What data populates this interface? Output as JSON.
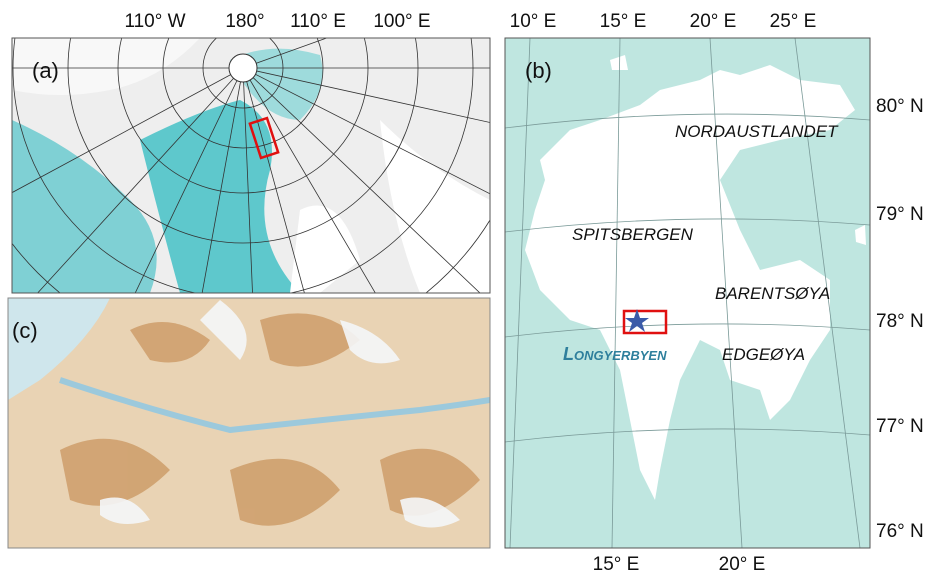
{
  "panel_a": {
    "label": "(a)",
    "lon_labels": [
      "110° W",
      "180°",
      "110° E",
      "100° E"
    ]
  },
  "panel_b": {
    "label": "(b)",
    "top_lon_labels": [
      "10° E",
      "15° E",
      "20° E",
      "25° E"
    ],
    "bottom_lon_labels": [
      "15° E",
      "20° E"
    ],
    "lat_labels": [
      "80° N",
      "79° N",
      "78° N",
      "77° N",
      "76° N"
    ],
    "places": [
      "NORDAUSTLANDET",
      "SPITSBERGEN",
      "BARENTSØYA",
      "EDGEØYA",
      "Longyerbyen"
    ]
  },
  "panel_c": {
    "label": "(c)"
  }
}
